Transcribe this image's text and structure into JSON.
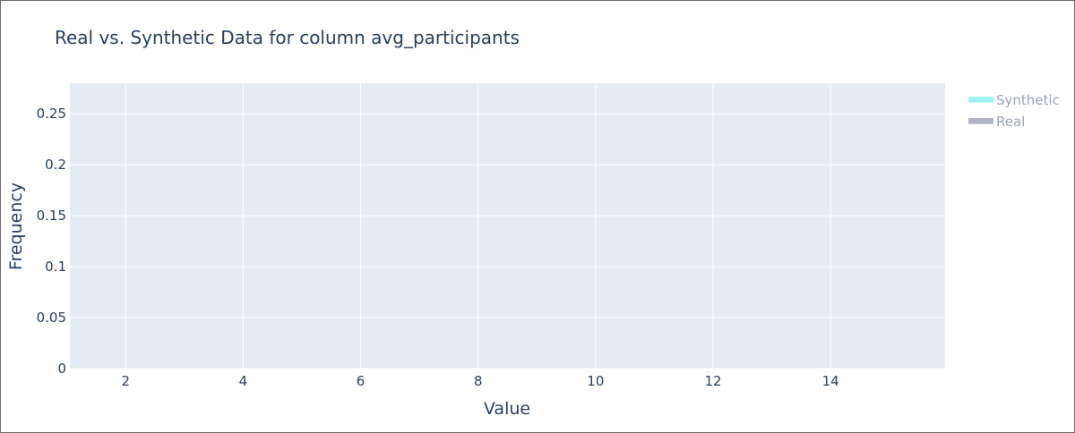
{
  "chart_data": {
    "type": "bar",
    "title": "Real vs. Synthetic Data for column avg_participants",
    "xlabel": "Value",
    "ylabel": "Frequency",
    "xlim": [
      1.05,
      15.95
    ],
    "ylim": [
      0,
      0.28
    ],
    "x_ticks": [
      2,
      4,
      6,
      8,
      10,
      12,
      14
    ],
    "x_tick_labels": [
      "2",
      "4",
      "6",
      "8",
      "10",
      "12",
      "14"
    ],
    "y_ticks": [
      0,
      0.05,
      0.1,
      0.15,
      0.2,
      0.25
    ],
    "y_tick_labels": [
      "0",
      "0.05",
      "0.1",
      "0.15",
      "0.2",
      "0.25"
    ],
    "grid": true,
    "legend_position": "top-right",
    "series": [
      {
        "name": "Synthetic",
        "color": "#8ef3ec",
        "x": [],
        "values": []
      },
      {
        "name": "Real",
        "color": "#a4a6bd",
        "x": [],
        "values": []
      }
    ]
  }
}
